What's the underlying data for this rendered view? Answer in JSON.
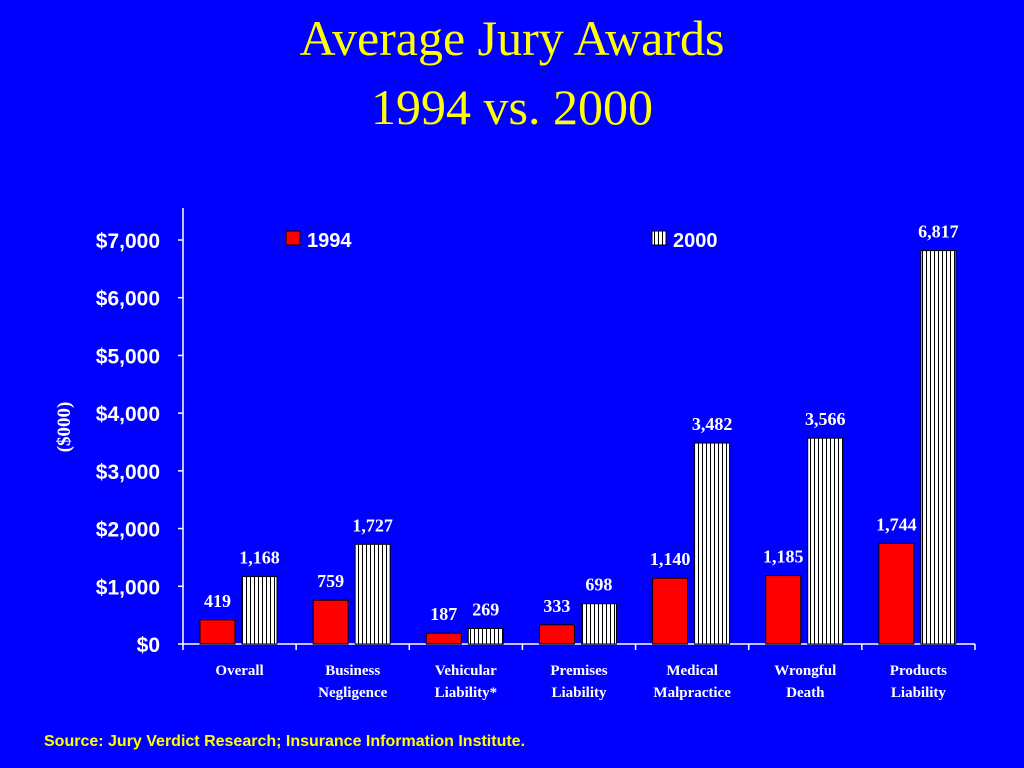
{
  "title": {
    "line1": "Average Jury Awards",
    "line2": "1994 vs. 2000"
  },
  "source": "Source: Jury Verdict Research; Insurance Information Institute.",
  "colors": {
    "background": "#0000FF",
    "title": "#FFFF00",
    "text": "#FFFFFF",
    "series_1994": "#FF0000",
    "series_2000": "#FFFFFF",
    "series_2000_stripe": "#000000"
  },
  "chart_data": {
    "type": "bar",
    "title": "Average Jury Awards 1994 vs. 2000",
    "ylabel": "($000)",
    "xlabel": "",
    "ylim": [
      0,
      7000
    ],
    "yticks": [
      0,
      1000,
      2000,
      3000,
      4000,
      5000,
      6000,
      7000
    ],
    "ytick_labels": [
      "$0",
      "$1,000",
      "$2,000",
      "$3,000",
      "$4,000",
      "$5,000",
      "$6,000",
      "$7,000"
    ],
    "categories": [
      [
        "Overall"
      ],
      [
        "Business",
        "Negligence"
      ],
      [
        "Vehicular",
        "Liability*"
      ],
      [
        "Premises",
        "Liability"
      ],
      [
        "Medical",
        "Malpractice"
      ],
      [
        "Wrongful",
        "Death"
      ],
      [
        "Products",
        "Liability"
      ]
    ],
    "series": [
      {
        "name": "1994",
        "values": [
          419,
          759,
          187,
          333,
          1140,
          1185,
          1744
        ],
        "labels": [
          "419",
          "759",
          "187",
          "333",
          "1,140",
          "1,185",
          "1,744"
        ],
        "fill": "solid-red"
      },
      {
        "name": "2000",
        "values": [
          1168,
          1727,
          269,
          698,
          3482,
          3566,
          6817
        ],
        "labels": [
          "1,168",
          "1,727",
          "269",
          "698",
          "3,482",
          "3,566",
          "6,817"
        ],
        "fill": "vertical-stripes"
      }
    ],
    "legend": "top",
    "grid": false
  }
}
